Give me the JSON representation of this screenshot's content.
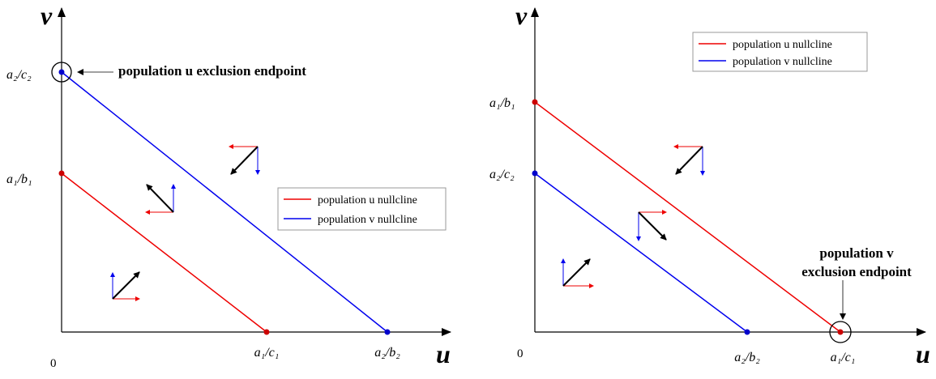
{
  "panels": [
    {
      "axis_labels": {
        "x": "u",
        "y": "v"
      },
      "origin_label": "0",
      "v_ticks": [
        "a₂/c₂",
        "a₁/b₁"
      ],
      "u_ticks": [
        "a₁/c₁",
        "a₂/b₂"
      ],
      "annotation": [
        "population u exclusion endpoint"
      ],
      "legend": [
        "population u nullcline",
        "population v nullcline"
      ]
    },
    {
      "axis_labels": {
        "x": "u",
        "y": "v"
      },
      "origin_label": "0",
      "v_ticks": [
        "a₁/b₁",
        "a₂/c₂"
      ],
      "u_ticks": [
        "a₂/b₂",
        "a₁/c₁"
      ],
      "annotation": [
        "population v",
        "exclusion endpoint"
      ],
      "legend": [
        "population u nullcline",
        "population v nullcline"
      ]
    }
  ]
}
